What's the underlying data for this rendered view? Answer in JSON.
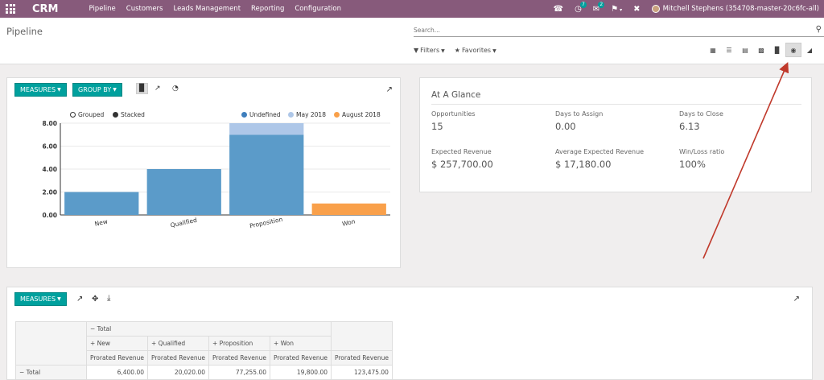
{
  "app": {
    "name": "CRM"
  },
  "menu": [
    "Pipeline",
    "Customers",
    "Leads Management",
    "Reporting",
    "Configuration"
  ],
  "systray": {
    "user": "Mitchell Stephens (354708-master-20c6fc-all)",
    "badge_a": "7",
    "badge_b": "2"
  },
  "breadcrumb": "Pipeline",
  "search": {
    "placeholder": "Search..."
  },
  "filters": {
    "filters_label": "Filters",
    "favorites_label": "Favorites"
  },
  "graph": {
    "measures_label": "MEASURES",
    "groupby_label": "GROUP BY",
    "grouped_label": "Grouped",
    "stacked_label": "Stacked"
  },
  "chart_data": {
    "type": "bar",
    "categories": [
      "New",
      "Qualified",
      "Proposition",
      "Won"
    ],
    "series": [
      {
        "name": "Undefined",
        "color": "#5b9bc9",
        "values": [
          2,
          4,
          7,
          0
        ]
      },
      {
        "name": "May 2018",
        "color": "#aec7e8",
        "values": [
          0,
          0,
          1,
          0
        ]
      },
      {
        "name": "August 2018",
        "color": "#f9a04a",
        "values": [
          0,
          0,
          0,
          1
        ]
      }
    ],
    "yticks": [
      "0.00",
      "2.00",
      "4.00",
      "6.00",
      "8.00"
    ],
    "ylim": [
      0,
      8
    ],
    "stacked": true
  },
  "glance": {
    "title": "At A Glance",
    "kpis": [
      {
        "label": "Opportunities",
        "value": "15"
      },
      {
        "label": "Days to Assign",
        "value": "0.00"
      },
      {
        "label": "Days to Close",
        "value": "6.13"
      },
      {
        "label": "Expected Revenue",
        "value": "$ 257,700.00"
      },
      {
        "label": "Average Expected Revenue",
        "value": "$ 17,180.00"
      },
      {
        "label": "Win/Loss ratio",
        "value": "100%"
      }
    ]
  },
  "pivot": {
    "measures_label": "MEASURES",
    "total_label": "Total",
    "columns": [
      "New",
      "Qualified",
      "Proposition",
      "Won"
    ],
    "measure": "Prorated Revenue",
    "row_label": "Total",
    "values": [
      "6,400.00",
      "20,020.00",
      "77,255.00",
      "19,800.00",
      "123,475.00"
    ]
  }
}
